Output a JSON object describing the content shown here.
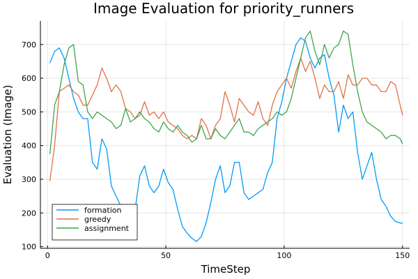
{
  "chart_data": {
    "type": "line",
    "title": "Image Evaluation for priority_runners",
    "xlabel": "TimeStep",
    "ylabel": "Evaluation (Image)",
    "xlim": [
      -3,
      153
    ],
    "ylim": [
      95,
      770
    ],
    "xticks": [
      0,
      50,
      100,
      150
    ],
    "yticks": [
      100,
      200,
      300,
      400,
      500,
      600,
      700
    ],
    "grid": true,
    "legend": "bottom-left",
    "series": [
      {
        "name": "formation",
        "color": "#009AFA",
        "x": [
          1,
          3,
          5,
          7,
          9,
          11,
          13,
          15,
          17,
          19,
          21,
          23,
          25,
          27,
          29,
          31,
          33,
          35,
          37,
          39,
          41,
          43,
          45,
          47,
          49,
          51,
          53,
          55,
          57,
          59,
          61,
          63,
          65,
          67,
          69,
          71,
          73,
          75,
          77,
          79,
          81,
          83,
          85,
          87,
          89,
          91,
          93,
          95,
          97,
          99,
          101,
          103,
          105,
          107,
          109,
          111,
          113,
          115,
          117,
          119,
          121,
          123,
          125,
          127,
          129,
          131,
          133,
          135,
          137,
          139,
          141,
          143,
          145,
          147,
          149,
          150
        ],
        "y": [
          645,
          680,
          690,
          660,
          600,
          540,
          500,
          480,
          480,
          350,
          330,
          420,
          390,
          280,
          250,
          220,
          200,
          190,
          210,
          310,
          340,
          280,
          260,
          280,
          330,
          290,
          270,
          210,
          160,
          140,
          125,
          115,
          130,
          170,
          230,
          300,
          340,
          260,
          280,
          350,
          350,
          260,
          240,
          250,
          260,
          270,
          320,
          350,
          480,
          530,
          600,
          650,
          700,
          720,
          710,
          660,
          630,
          660,
          670,
          600,
          550,
          440,
          520,
          480,
          500,
          380,
          300,
          340,
          380,
          300,
          240,
          220,
          190,
          175,
          170,
          170
        ]
      },
      {
        "name": "greedy",
        "color": "#E26F46",
        "x": [
          1,
          3,
          5,
          7,
          9,
          11,
          13,
          15,
          17,
          19,
          21,
          23,
          25,
          27,
          29,
          31,
          33,
          35,
          37,
          39,
          41,
          43,
          45,
          47,
          49,
          51,
          53,
          55,
          57,
          59,
          61,
          63,
          65,
          67,
          69,
          71,
          73,
          75,
          77,
          79,
          81,
          83,
          85,
          87,
          89,
          91,
          93,
          95,
          97,
          99,
          101,
          103,
          105,
          107,
          109,
          111,
          113,
          115,
          117,
          119,
          121,
          123,
          125,
          127,
          129,
          131,
          133,
          135,
          137,
          139,
          141,
          143,
          145,
          147,
          149,
          150
        ],
        "y": [
          295,
          400,
          560,
          570,
          580,
          560,
          550,
          520,
          520,
          550,
          580,
          630,
          600,
          560,
          580,
          560,
          510,
          500,
          480,
          490,
          530,
          490,
          500,
          480,
          500,
          470,
          460,
          450,
          430,
          420,
          430,
          420,
          480,
          460,
          420,
          460,
          480,
          560,
          520,
          470,
          540,
          520,
          500,
          490,
          530,
          480,
          460,
          520,
          560,
          580,
          600,
          570,
          620,
          660,
          620,
          650,
          600,
          540,
          580,
          560,
          560,
          590,
          540,
          610,
          580,
          580,
          600,
          600,
          580,
          580,
          560,
          560,
          590,
          580,
          520,
          490
        ]
      },
      {
        "name": "assignment",
        "color": "#3DA44D",
        "x": [
          1,
          3,
          5,
          7,
          9,
          11,
          13,
          15,
          17,
          19,
          21,
          23,
          25,
          27,
          29,
          31,
          33,
          35,
          37,
          39,
          41,
          43,
          45,
          47,
          49,
          51,
          53,
          55,
          57,
          59,
          61,
          63,
          65,
          67,
          69,
          71,
          73,
          75,
          77,
          79,
          81,
          83,
          85,
          87,
          89,
          91,
          93,
          95,
          97,
          99,
          101,
          103,
          105,
          107,
          109,
          111,
          113,
          115,
          117,
          119,
          121,
          123,
          125,
          127,
          129,
          131,
          133,
          135,
          137,
          139,
          141,
          143,
          145,
          147,
          149,
          150
        ],
        "y": [
          375,
          520,
          560,
          640,
          690,
          700,
          590,
          580,
          500,
          480,
          500,
          490,
          480,
          470,
          450,
          460,
          510,
          470,
          480,
          500,
          480,
          470,
          450,
          440,
          470,
          450,
          440,
          460,
          440,
          430,
          410,
          420,
          460,
          420,
          420,
          450,
          430,
          420,
          440,
          460,
          480,
          440,
          440,
          430,
          450,
          460,
          470,
          480,
          500,
          490,
          500,
          540,
          600,
          660,
          720,
          740,
          680,
          640,
          700,
          660,
          690,
          700,
          740,
          730,
          640,
          560,
          500,
          470,
          460,
          450,
          440,
          420,
          430,
          430,
          420,
          405
        ]
      }
    ]
  }
}
